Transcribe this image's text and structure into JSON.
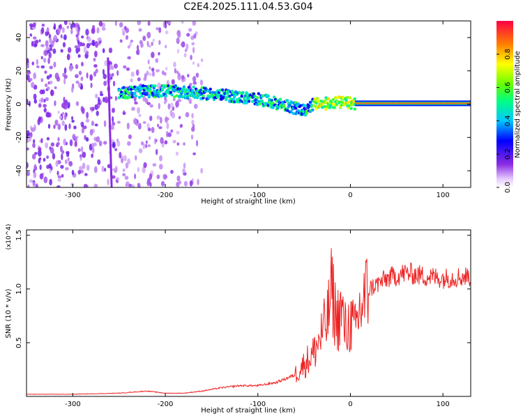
{
  "title": "C2E4.2025.111.04.53.G04",
  "colors": {
    "snr_line": "#ee2222",
    "frame": "#000000",
    "spectrogram_low": "#ddb8ff",
    "spectrogram_mid": "#7a1cf0"
  },
  "chart_data": [
    {
      "type": "heatmap",
      "xlabel": "Height of straight line (km)",
      "ylabel": "Frequency (Hz)",
      "xlim": [
        -350,
        130
      ],
      "ylim": [
        -50,
        50
      ],
      "xticks": [
        -300,
        -200,
        -100,
        0,
        100
      ],
      "xtick_labels": [
        "-300",
        "-200",
        "-100",
        "0",
        "100"
      ],
      "yticks": [
        -40,
        -20,
        0,
        20,
        40
      ],
      "ytick_labels": [
        "-40",
        "-20",
        "0",
        "20",
        "40"
      ],
      "colorbar": {
        "label": "Normalized spectral amplitude",
        "range": [
          0.0,
          1.0
        ],
        "ticks": [
          0.0,
          0.2,
          0.4,
          0.6,
          0.8
        ],
        "tick_labels": [
          "0.0",
          "0.2",
          "0.4",
          "0.6",
          "0.8"
        ],
        "colormap": "rainbow"
      },
      "ridge": {
        "x": [
          -250,
          -200,
          -150,
          -100,
          -75,
          -50,
          -40,
          -30,
          -20,
          -10,
          0,
          50,
          100,
          130
        ],
        "y": [
          7,
          8,
          6,
          3,
          0,
          -4,
          0,
          0,
          1,
          1,
          0.5,
          0.5,
          0,
          0
        ]
      },
      "grid": false
    },
    {
      "type": "line",
      "xlabel": "Height of straight line (km)",
      "ylabel": "SNR (10 * v/v)",
      "y_multiplier": "(x10^4)",
      "xlim": [
        -350,
        130
      ],
      "ylim": [
        0.0,
        1.55
      ],
      "xticks": [
        -300,
        -200,
        -100,
        0,
        100
      ],
      "xtick_labels": [
        "-300",
        "-200",
        "-100",
        "0",
        "100"
      ],
      "yticks": [
        0.5,
        1.0,
        1.5
      ],
      "ytick_labels": [
        "0.5",
        "1.0",
        "1.5"
      ],
      "series": [
        {
          "x": [
            -350,
            -300,
            -250,
            -220,
            -200,
            -180,
            -160,
            -140,
            -120,
            -100,
            -80,
            -60,
            -50,
            -40,
            -30,
            -25,
            -20,
            -15,
            -10,
            -5,
            0,
            5,
            10,
            15,
            20,
            30,
            40,
            60,
            80,
            100,
            130
          ],
          "y": [
            0.02,
            0.02,
            0.03,
            0.05,
            0.03,
            0.03,
            0.05,
            0.08,
            0.1,
            0.1,
            0.13,
            0.2,
            0.3,
            0.4,
            0.6,
            0.7,
            1.0,
            0.7,
            0.8,
            0.6,
            0.7,
            0.6,
            0.8,
            0.9,
            1.0,
            1.05,
            1.1,
            1.15,
            1.12,
            1.1,
            1.12
          ]
        }
      ],
      "grid": false
    }
  ]
}
